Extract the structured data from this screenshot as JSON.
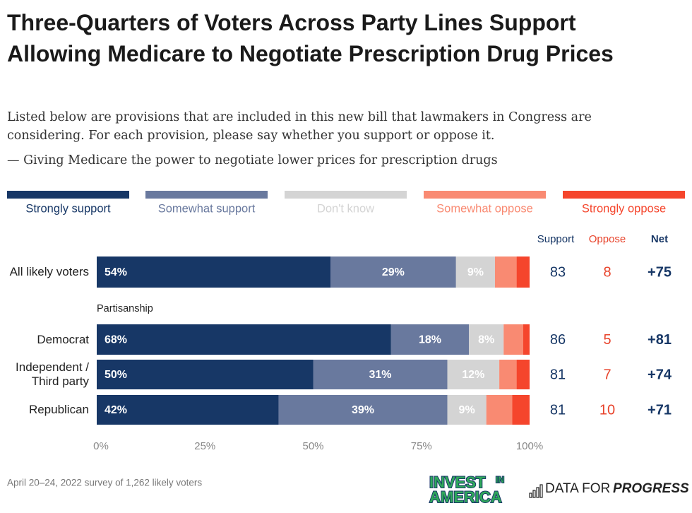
{
  "chart_data": {
    "type": "stacked-bar-horizontal",
    "title": "Three-Quarters of Voters Across Party Lines Support Allowing Medicare to Negotiate Prescription Drug Prices",
    "subtitle": "Listed below are provisions that are included in this new bill that lawmakers in Congress are considering. For each provision, please say whether you support or oppose it.",
    "question": "— Giving Medicare the power to negotiate lower prices for prescription drugs",
    "categories": [
      "All likely voters",
      "Democrat",
      "Independent / Third party",
      "Republican"
    ],
    "group_label": "Partisanship",
    "series": [
      {
        "name": "Strongly support",
        "color": "#173766",
        "values": [
          54,
          68,
          50,
          42
        ],
        "value_labels": [
          "54%",
          "68%",
          "50%",
          "42%"
        ]
      },
      {
        "name": "Somewhat support",
        "color": "#69799e",
        "values": [
          29,
          18,
          31,
          39
        ],
        "value_labels": [
          "29%",
          "18%",
          "31%",
          "39%"
        ]
      },
      {
        "name": "Don't know",
        "color": "#d4d4d4",
        "values": [
          9,
          8,
          12,
          9
        ],
        "value_labels": [
          "9%",
          "8%",
          "12%",
          "9%"
        ]
      },
      {
        "name": "Somewhat oppose",
        "color": "#f98a72",
        "values": [
          5,
          4.5,
          4,
          6
        ]
      },
      {
        "name": "Strongly oppose",
        "color": "#f5452c",
        "values": [
          3,
          1.5,
          3,
          4
        ]
      }
    ],
    "xlim": [
      0,
      100
    ],
    "xticks": [
      {
        "value": 0,
        "label": "0%"
      },
      {
        "value": 25,
        "label": "25%"
      },
      {
        "value": 50,
        "label": "50%"
      },
      {
        "value": 75,
        "label": "75%"
      },
      {
        "value": 100,
        "label": "100%"
      }
    ],
    "columns": [
      {
        "name": "Support",
        "color": "#173766",
        "values": [
          83,
          86,
          81,
          81
        ]
      },
      {
        "name": "Oppose",
        "color": "#e8432b",
        "values": [
          8,
          5,
          7,
          10
        ]
      },
      {
        "name": "Net",
        "color": "#173766",
        "values": [
          75,
          81,
          74,
          71
        ],
        "value_labels": [
          "+75",
          "+81",
          "+74",
          "+71"
        ]
      }
    ],
    "footnote": "April 20–24, 2022 survey of 1,262 likely voters",
    "logos": [
      "INVEST",
      "IN",
      "AMERICA",
      "DATA FOR",
      "PROGRESS"
    ]
  }
}
